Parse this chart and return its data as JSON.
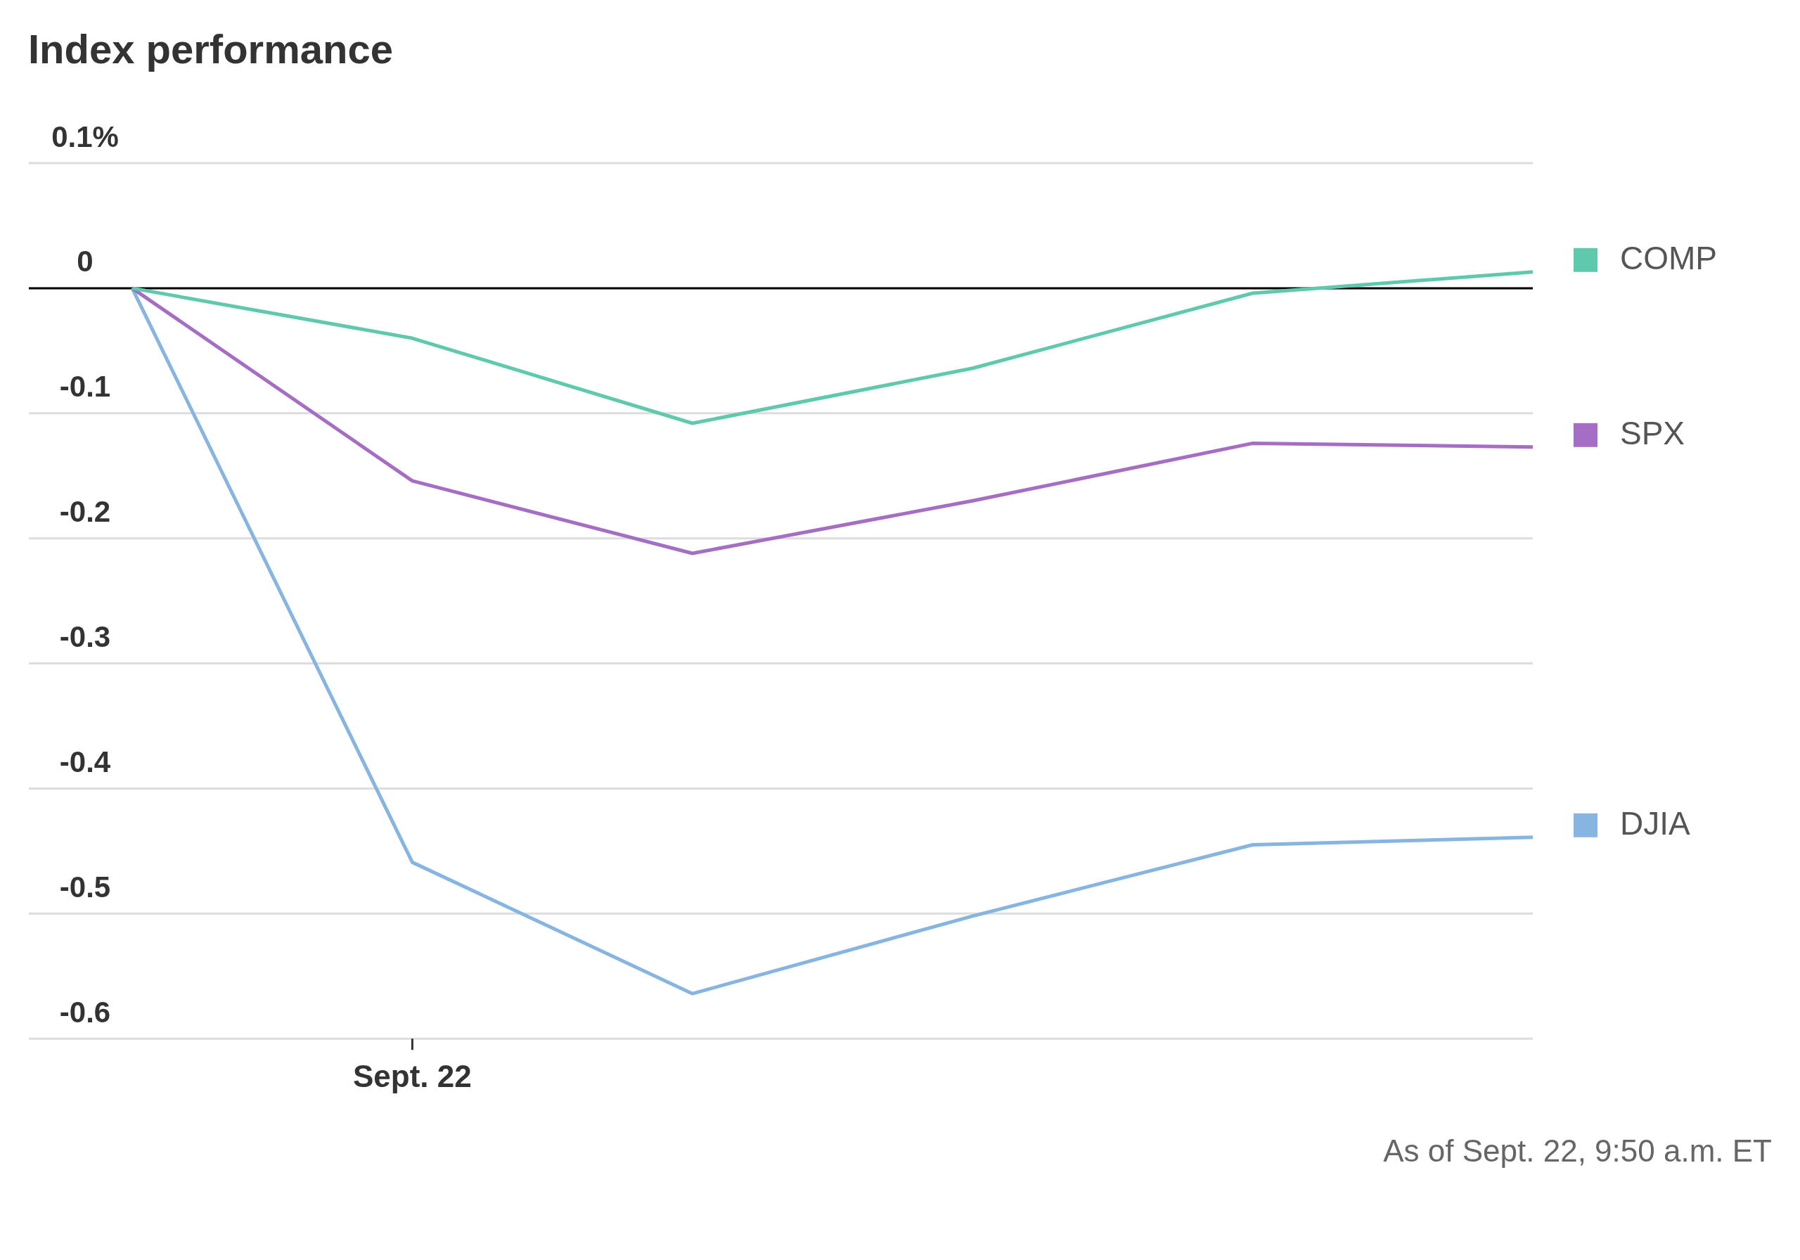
{
  "chart_data": {
    "type": "line",
    "title": "Index performance",
    "categories": [
      null,
      "Sept. 22",
      null,
      null,
      null,
      null
    ],
    "series": [
      {
        "name": "COMP",
        "color": "#5ec9ad",
        "values": [
          0,
          -0.04,
          -0.108,
          -0.064,
          -0.004,
          0.013
        ]
      },
      {
        "name": "SPX",
        "color": "#a56dc4",
        "values": [
          0,
          -0.154,
          -0.212,
          -0.17,
          -0.124,
          -0.127
        ]
      },
      {
        "name": "DJIA",
        "color": "#86b5e2",
        "values": [
          0,
          -0.459,
          -0.564,
          -0.502,
          -0.445,
          -0.439
        ]
      }
    ],
    "ylim": [
      -0.6,
      0.1
    ],
    "yticks": [
      {
        "value": 0.1,
        "label": "0.1%"
      },
      0,
      -0.1,
      -0.2,
      -0.3,
      -0.4,
      -0.5,
      -0.6
    ],
    "grid": "y",
    "legend": "right",
    "marker": "none",
    "line_style": "solid",
    "ref_lines": [
      {
        "axis": "y",
        "value": 0,
        "color": "#000000"
      }
    ],
    "annotations": [
      "As of Sept. 22, 9:50 a.m. ET"
    ]
  }
}
